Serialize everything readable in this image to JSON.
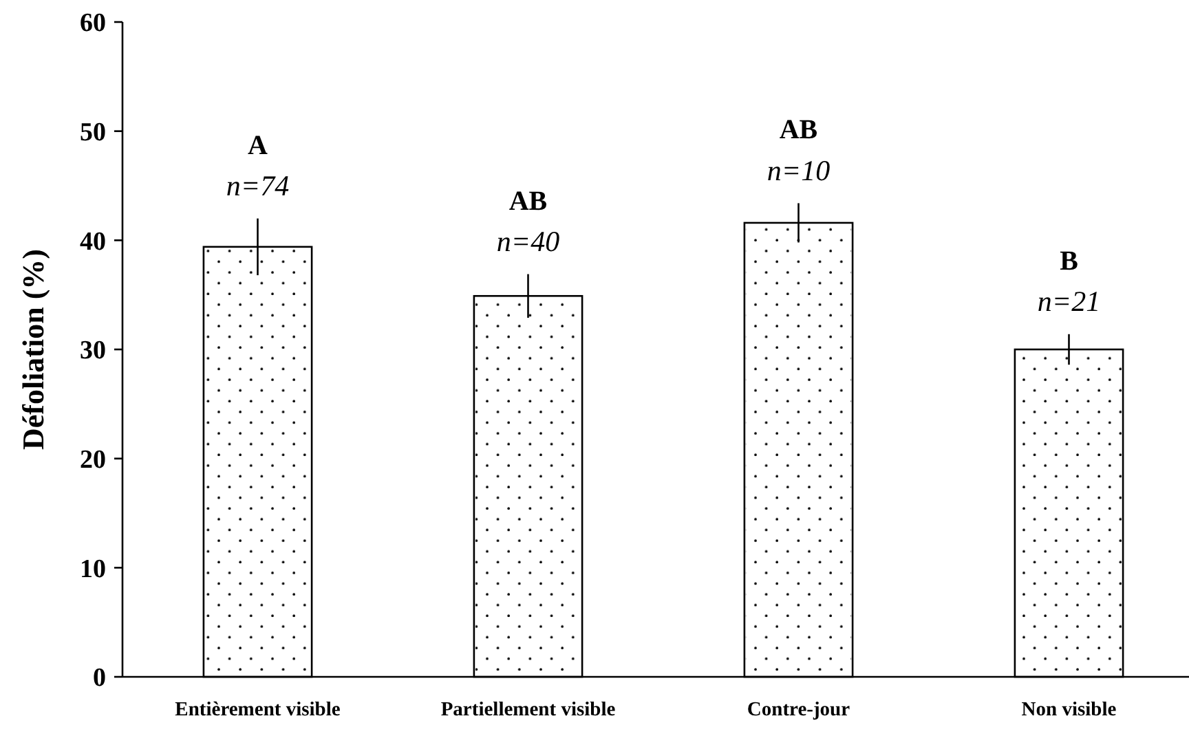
{
  "chart_data": {
    "type": "bar",
    "ylabel": "Défoliation (%)",
    "categories": [
      "Entièrement visible",
      "Partiellement visible",
      "Contre-jour",
      "Non visible"
    ],
    "values": [
      39.4,
      34.9,
      41.6,
      30.0
    ],
    "errors": [
      2.6,
      2.0,
      1.8,
      1.4
    ],
    "color": "#ffffff",
    "ylim": [
      0,
      60
    ],
    "yticks": [
      0,
      10,
      20,
      30,
      40,
      50,
      60
    ],
    "annotations": [
      "A",
      "n=74",
      "AB",
      "n=40",
      "AB",
      "n=10",
      "B",
      "n=21"
    ]
  }
}
